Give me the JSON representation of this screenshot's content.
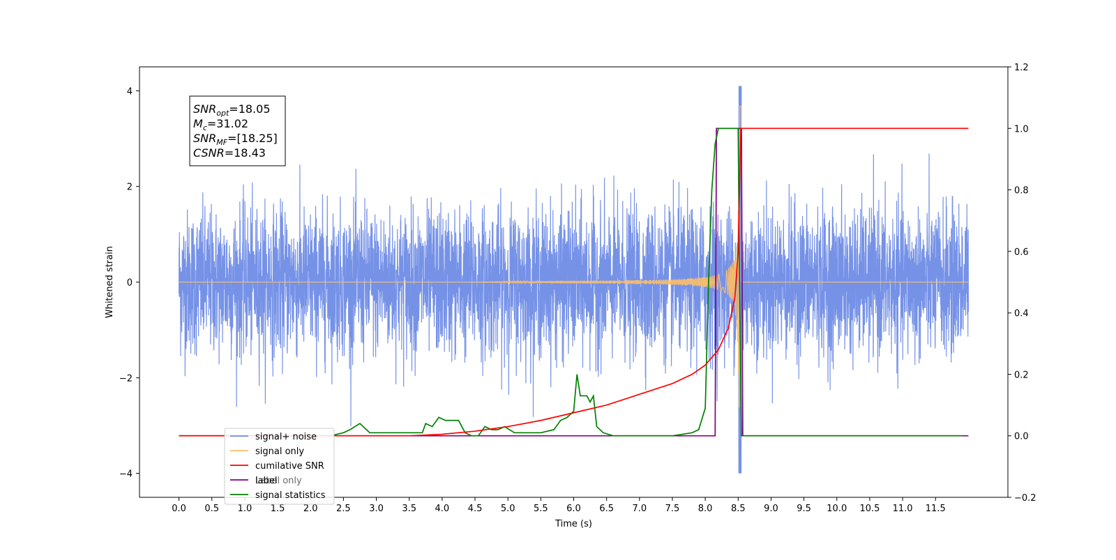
{
  "chart_data": {
    "type": "line",
    "xlabel": "Time (s)",
    "ylabel": "Whitened strain",
    "xlim": [
      -0.6,
      12.6
    ],
    "ylim_left": [
      -4.5,
      4.5
    ],
    "ylim_right": [
      -0.2,
      1.2
    ],
    "x_ticks": [
      0.0,
      0.5,
      1.0,
      1.5,
      2.0,
      2.5,
      3.0,
      3.5,
      4.0,
      4.5,
      5.0,
      5.5,
      6.0,
      6.5,
      7.0,
      7.5,
      8.0,
      8.5,
      9.0,
      9.5,
      10.0,
      10.5,
      11.0,
      11.5
    ],
    "x_tick_labels": [
      "0.0",
      "0.5",
      "1.0",
      "1.5",
      "2.0",
      "2.5",
      "3.0",
      "3.5",
      "4.0",
      "4.5",
      "5.0",
      "5.5",
      "6.0",
      "6.5",
      "7.0",
      "7.5",
      "8.0",
      "8.5",
      "9.0",
      "9.5",
      "10.0",
      "10.5",
      "11.0",
      "11.5"
    ],
    "y_left_ticks": [
      -4,
      -2,
      0,
      2,
      4
    ],
    "y_left_tick_labels": [
      "−4",
      "−2",
      "0",
      "2",
      "4"
    ],
    "y_right_ticks": [
      -0.2,
      0.0,
      0.2,
      0.4,
      0.6,
      0.8,
      1.0,
      1.2
    ],
    "y_right_tick_labels": [
      "−0.2",
      "0.0",
      "0.2",
      "0.4",
      "0.6",
      "0.8",
      "1.0",
      "1.2"
    ],
    "annotation": {
      "lines": [
        {
          "main": "SNR",
          "sub": "opt",
          "rest": "=18.05"
        },
        {
          "main": "M",
          "sub": "c",
          "rest": "=31.02"
        },
        {
          "main": "SNR",
          "sub": "MF",
          "rest": "=[18.25]"
        },
        {
          "main": "CSNR",
          "sub": "",
          "rest": "=18.43"
        }
      ]
    },
    "legend_position": "lower-left",
    "series": [
      {
        "name": "signal+ noise",
        "axis": "left",
        "color": "#6f8ce6",
        "description_values": {
          "x_range": [
            0.0,
            12.0
          ],
          "typical_amplitude": 1.4,
          "max": 4.1,
          "min": -4.0
        }
      },
      {
        "name": "signal only",
        "axis": "left",
        "color": "#ffbf66",
        "chirp": {
          "start": 4.3,
          "merger": 8.52,
          "end": 8.55,
          "peak_amplitude": 4.0
        }
      },
      {
        "name": "cumilative SNR",
        "axis": "right",
        "color": "#ff0000",
        "x": [
          0.0,
          3.5,
          4.0,
          4.5,
          5.0,
          5.5,
          6.0,
          6.5,
          7.0,
          7.5,
          7.8,
          8.0,
          8.2,
          8.35,
          8.45,
          8.5,
          8.52,
          8.54,
          9.0,
          12.0
        ],
        "values": [
          0.0,
          0.0,
          0.005,
          0.015,
          0.03,
          0.05,
          0.075,
          0.1,
          0.135,
          0.17,
          0.2,
          0.23,
          0.28,
          0.35,
          0.45,
          0.6,
          0.8,
          1.0,
          1.0,
          1.0
        ]
      },
      {
        "name": "label",
        "axis": "right",
        "color": "#800080",
        "x": [
          0.0,
          8.15,
          8.17,
          8.55,
          8.57,
          12.0
        ],
        "values": [
          0.0,
          0.0,
          1.0,
          1.0,
          0.0,
          0.0
        ]
      },
      {
        "name": "Label only",
        "axis": "right",
        "color": "#808080",
        "hidden_in_plot": true
      },
      {
        "name": "signal statistics",
        "axis": "right",
        "color": "#008000",
        "x": [
          0.0,
          2.3,
          2.5,
          2.6,
          2.75,
          2.9,
          3.1,
          3.3,
          3.5,
          3.7,
          3.75,
          3.85,
          3.95,
          4.05,
          4.15,
          4.25,
          4.35,
          4.45,
          4.55,
          4.65,
          4.75,
          4.85,
          4.95,
          5.1,
          5.3,
          5.5,
          5.7,
          5.8,
          5.9,
          6.0,
          6.05,
          6.1,
          6.2,
          6.25,
          6.3,
          6.35,
          6.45,
          6.6,
          6.8,
          7.0,
          7.5,
          7.8,
          7.9,
          8.0,
          8.05,
          8.1,
          8.15,
          8.2,
          8.25,
          8.3,
          8.35,
          8.4,
          8.45,
          8.5,
          8.52,
          8.55,
          8.6,
          11.9
        ],
        "values": [
          0.0,
          0.0,
          0.01,
          0.02,
          0.04,
          0.01,
          0.01,
          0.01,
          0.01,
          0.01,
          0.04,
          0.03,
          0.06,
          0.05,
          0.05,
          0.05,
          0.01,
          0.0,
          0.0,
          0.03,
          0.02,
          0.02,
          0.03,
          0.01,
          0.01,
          0.01,
          0.02,
          0.05,
          0.06,
          0.08,
          0.2,
          0.13,
          0.13,
          0.11,
          0.13,
          0.03,
          0.01,
          0.0,
          0.0,
          0.0,
          0.0,
          0.01,
          0.02,
          0.09,
          0.5,
          0.8,
          0.95,
          1.0,
          1.0,
          1.0,
          1.0,
          1.0,
          1.0,
          1.0,
          0.5,
          0.0,
          0.0,
          0.0
        ]
      }
    ],
    "legend": [
      {
        "label": "signal+ noise",
        "color": "#6f8ce6"
      },
      {
        "label": "signal only",
        "color": "#ffbf66"
      },
      {
        "label": "cumilative SNR",
        "color": "#ff0000"
      },
      {
        "label": "label",
        "color": "#800080"
      },
      {
        "label": "Label only",
        "color": "#808080",
        "overlapped": true
      },
      {
        "label": "signal statistics",
        "color": "#008000"
      }
    ]
  }
}
